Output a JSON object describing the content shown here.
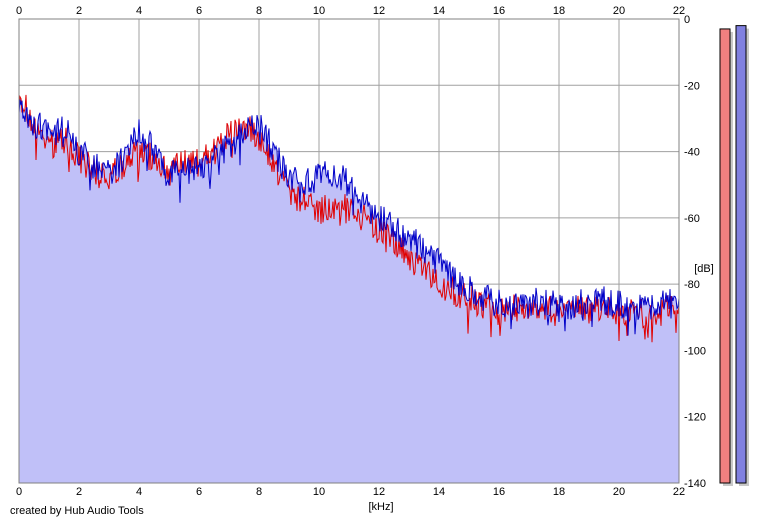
{
  "footer_text": "created by Hub Audio Tools",
  "chart_data": {
    "type": "line",
    "title": "",
    "xlabel": "[kHz]",
    "ylabel": "[dB]",
    "xlim": [
      0,
      22
    ],
    "ylim": [
      -140,
      0
    ],
    "x_ticks": [
      0,
      2,
      4,
      6,
      8,
      10,
      12,
      14,
      16,
      18,
      20,
      22
    ],
    "y_ticks": [
      0,
      -20,
      -40,
      -60,
      -80,
      -100,
      -120,
      -140
    ],
    "grid": true,
    "fill_color": "#c0c0f8",
    "series": [
      {
        "color": "#e00000",
        "x": [
          0,
          0.5,
          1,
          1.5,
          2,
          2.5,
          3,
          3.5,
          4,
          4.5,
          5,
          5.5,
          6,
          6.5,
          7,
          7.5,
          8,
          8.5,
          9,
          9.5,
          10,
          10.5,
          11,
          11.5,
          12,
          12.5,
          13,
          13.5,
          14,
          14.5,
          15,
          15.5,
          16,
          16.5,
          17,
          17.5,
          18,
          18.5,
          19,
          19.5,
          20,
          20.5,
          21,
          21.5,
          22
        ],
        "values": [
          -22,
          -33,
          -38,
          -36,
          -42,
          -46,
          -48,
          -44,
          -40,
          -42,
          -46,
          -44,
          -43,
          -40,
          -35,
          -32,
          -36,
          -44,
          -52,
          -55,
          -58,
          -55,
          -57,
          -60,
          -64,
          -68,
          -72,
          -76,
          -80,
          -82,
          -84,
          -86,
          -88,
          -87,
          -88,
          -87,
          -89,
          -88,
          -88,
          -87,
          -88,
          -88,
          -89,
          -88,
          -87
        ]
      },
      {
        "color": "#0000c8",
        "x": [
          0,
          0.5,
          1,
          1.5,
          2,
          2.5,
          3,
          3.5,
          4,
          4.5,
          5,
          5.5,
          6,
          6.5,
          7,
          7.5,
          8,
          8.5,
          9,
          9.5,
          10,
          10.5,
          11,
          11.5,
          12,
          12.5,
          13,
          13.5,
          14,
          14.5,
          15,
          15.5,
          16,
          16.5,
          17,
          17.5,
          18,
          18.5,
          19,
          19.5,
          20,
          20.5,
          21,
          21.5,
          22
        ],
        "values": [
          -24,
          -32,
          -34,
          -33,
          -40,
          -44,
          -46,
          -42,
          -34,
          -40,
          -46,
          -47,
          -44,
          -42,
          -38,
          -34,
          -32,
          -40,
          -48,
          -50,
          -48,
          -46,
          -50,
          -56,
          -60,
          -63,
          -66,
          -70,
          -74,
          -78,
          -82,
          -84,
          -86,
          -85,
          -86,
          -85,
          -87,
          -86,
          -86,
          -85,
          -86,
          -86,
          -87,
          -86,
          -86
        ]
      }
    ],
    "level_meters": [
      {
        "channel": "left",
        "color": "#f08080",
        "level_db": -3
      },
      {
        "channel": "right",
        "color": "#8080e0",
        "level_db": -2
      }
    ]
  }
}
